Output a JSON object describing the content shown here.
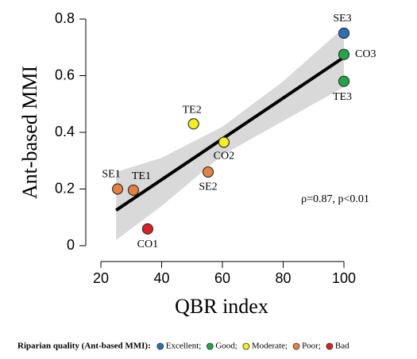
{
  "chart_data": {
    "type": "scatter",
    "x_label": "QBR index",
    "y_label": "Ant-based MMI",
    "xlim": [
      20,
      100
    ],
    "ylim": [
      0,
      0.8
    ],
    "xticks": [
      20,
      40,
      60,
      80,
      100
    ],
    "yticks": [
      0,
      0.2,
      0.4,
      0.6,
      0.8
    ],
    "legend_title": "Riparian quality (Ant-based MMI):",
    "annotation": "ρ=0.87, p<0.01",
    "fit": {
      "color": "#000000",
      "x": [
        25,
        100
      ],
      "values": [
        0.125,
        0.665
      ]
    },
    "band": {
      "color": "#d9d9d9",
      "x": [
        25,
        40,
        60,
        80,
        100
      ],
      "upper": [
        0.26,
        0.31,
        0.42,
        0.58,
        0.77
      ],
      "lower": [
        0.02,
        0.14,
        0.32,
        0.44,
        0.56
      ]
    },
    "series": [
      {
        "name": "Excellent;",
        "color": "#2a6fb8",
        "labels": [
          "SE3"
        ],
        "x": [
          100
        ],
        "values": [
          0.75
        ]
      },
      {
        "name": "Good;",
        "color": "#1fa84a",
        "labels": [
          "CO3",
          "TE3"
        ],
        "x": [
          100,
          100
        ],
        "values": [
          0.675,
          0.58
        ]
      },
      {
        "name": "Moderate;",
        "color": "#f5ef1c",
        "labels": [
          "TE2",
          "CO2"
        ],
        "x": [
          50.5,
          60.5
        ],
        "values": [
          0.43,
          0.365
        ]
      },
      {
        "name": "Poor;",
        "color": "#e58140",
        "labels": [
          "SE2",
          "SE1",
          "TE1"
        ],
        "x": [
          55.3,
          25.5,
          30.7
        ],
        "values": [
          0.26,
          0.2,
          0.196
        ]
      },
      {
        "name": "Bad",
        "color": "#e31b23",
        "labels": [
          "CO1"
        ],
        "x": [
          35.4
        ],
        "values": [
          0.059
        ]
      }
    ]
  }
}
